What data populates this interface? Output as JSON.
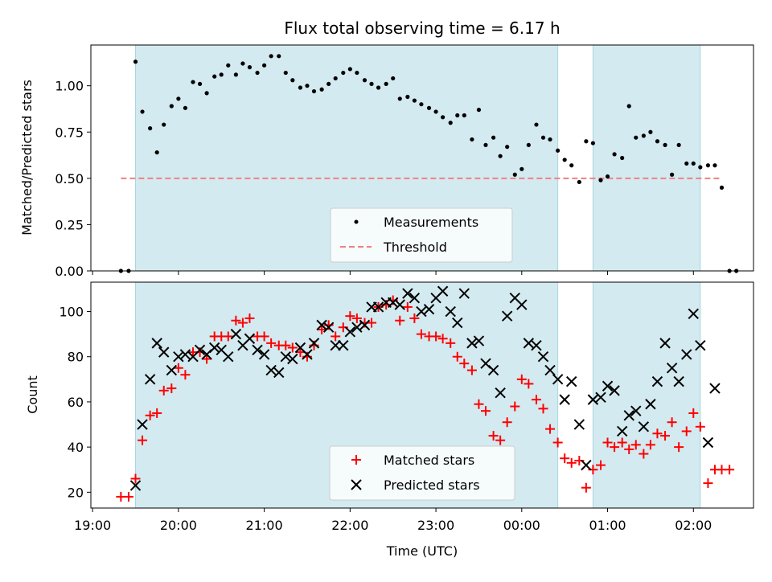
{
  "chart_data": [
    {
      "type": "scatter",
      "title": "Flux total observing time = 6.17 h",
      "xlabel": "",
      "ylabel": "Matched/Predicted stars",
      "ylim": [
        0,
        1.22
      ],
      "yticks": [
        "0.00",
        "0.25",
        "0.50",
        "0.75",
        "1.00"
      ],
      "ytick_values": [
        0,
        0.25,
        0.5,
        0.75,
        1.0
      ],
      "grid": false,
      "legend": "lower-center",
      "shaded_intervals_hours": [
        [
          19.5,
          24.42
        ],
        [
          24.83,
          26.08
        ]
      ],
      "threshold": {
        "name": "Threshold",
        "y": 0.5,
        "x_range_hours": [
          19.33,
          26.33
        ],
        "color": "#f08080"
      },
      "series": [
        {
          "name": "Measurements",
          "marker": "dot",
          "color": "#000000",
          "points": [
            [
              19.33,
              0.0
            ],
            [
              19.42,
              0.0
            ],
            [
              19.5,
              1.13
            ],
            [
              19.58,
              0.86
            ],
            [
              19.67,
              0.77
            ],
            [
              19.75,
              0.64
            ],
            [
              19.83,
              0.79
            ],
            [
              19.92,
              0.89
            ],
            [
              20.0,
              0.93
            ],
            [
              20.08,
              0.88
            ],
            [
              20.17,
              1.02
            ],
            [
              20.25,
              1.01
            ],
            [
              20.33,
              0.96
            ],
            [
              20.42,
              1.05
            ],
            [
              20.5,
              1.06
            ],
            [
              20.58,
              1.11
            ],
            [
              20.67,
              1.06
            ],
            [
              20.75,
              1.12
            ],
            [
              20.83,
              1.1
            ],
            [
              20.92,
              1.07
            ],
            [
              21.0,
              1.11
            ],
            [
              21.08,
              1.16
            ],
            [
              21.17,
              1.16
            ],
            [
              21.25,
              1.07
            ],
            [
              21.33,
              1.03
            ],
            [
              21.42,
              0.99
            ],
            [
              21.5,
              1.0
            ],
            [
              21.58,
              0.97
            ],
            [
              21.67,
              0.98
            ],
            [
              21.75,
              1.01
            ],
            [
              21.83,
              1.04
            ],
            [
              21.92,
              1.07
            ],
            [
              22.0,
              1.09
            ],
            [
              22.08,
              1.07
            ],
            [
              22.17,
              1.03
            ],
            [
              22.25,
              1.01
            ],
            [
              22.33,
              0.99
            ],
            [
              22.42,
              1.01
            ],
            [
              22.5,
              1.04
            ],
            [
              22.58,
              0.93
            ],
            [
              22.67,
              0.94
            ],
            [
              22.75,
              0.92
            ],
            [
              22.83,
              0.9
            ],
            [
              22.92,
              0.88
            ],
            [
              23.0,
              0.86
            ],
            [
              23.08,
              0.83
            ],
            [
              23.17,
              0.8
            ],
            [
              23.25,
              0.84
            ],
            [
              23.33,
              0.84
            ],
            [
              23.42,
              0.71
            ],
            [
              23.5,
              0.87
            ],
            [
              23.58,
              0.68
            ],
            [
              23.67,
              0.72
            ],
            [
              23.75,
              0.62
            ],
            [
              23.83,
              0.67
            ],
            [
              23.92,
              0.52
            ],
            [
              24.0,
              0.55
            ],
            [
              24.08,
              0.68
            ],
            [
              24.17,
              0.79
            ],
            [
              24.25,
              0.72
            ],
            [
              24.33,
              0.71
            ],
            [
              24.42,
              0.65
            ],
            [
              24.5,
              0.6
            ],
            [
              24.58,
              0.57
            ],
            [
              24.67,
              0.48
            ],
            [
              24.75,
              0.7
            ],
            [
              24.83,
              0.69
            ],
            [
              24.92,
              0.49
            ],
            [
              25.0,
              0.51
            ],
            [
              25.08,
              0.63
            ],
            [
              25.17,
              0.61
            ],
            [
              25.25,
              0.89
            ],
            [
              25.33,
              0.72
            ],
            [
              25.42,
              0.73
            ],
            [
              25.5,
              0.75
            ],
            [
              25.58,
              0.7
            ],
            [
              25.67,
              0.68
            ],
            [
              25.75,
              0.52
            ],
            [
              25.83,
              0.68
            ],
            [
              25.92,
              0.58
            ],
            [
              26.0,
              0.58
            ],
            [
              26.08,
              0.56
            ],
            [
              26.17,
              0.57
            ],
            [
              26.25,
              0.57
            ],
            [
              26.33,
              0.45
            ],
            [
              26.42,
              0.0
            ],
            [
              26.5,
              0.0
            ]
          ]
        }
      ]
    },
    {
      "type": "scatter",
      "title": "",
      "xlabel": "Time (UTC)",
      "ylabel": "Count",
      "ylim": [
        13,
        113
      ],
      "yticks": [
        "20",
        "40",
        "60",
        "80",
        "100"
      ],
      "ytick_values": [
        20,
        40,
        60,
        80,
        100
      ],
      "xticks": [
        "19:00",
        "20:00",
        "21:00",
        "22:00",
        "23:00",
        "00:00",
        "01:00",
        "02:00"
      ],
      "xtick_values_hours": [
        19,
        20,
        21,
        22,
        23,
        24,
        25,
        26
      ],
      "grid": false,
      "legend": "lower-center",
      "shaded_intervals_hours": [
        [
          19.5,
          24.42
        ],
        [
          24.83,
          26.08
        ]
      ],
      "series": [
        {
          "name": "Matched stars",
          "marker": "plus",
          "color": "#ff0000",
          "points": [
            [
              19.33,
              18
            ],
            [
              19.42,
              18
            ],
            [
              19.5,
              26
            ],
            [
              19.58,
              43
            ],
            [
              19.67,
              54
            ],
            [
              19.75,
              55
            ],
            [
              19.83,
              65
            ],
            [
              19.92,
              66
            ],
            [
              20.0,
              75
            ],
            [
              20.08,
              72
            ],
            [
              20.17,
              82
            ],
            [
              20.25,
              82
            ],
            [
              20.33,
              79
            ],
            [
              20.42,
              89
            ],
            [
              20.5,
              89
            ],
            [
              20.58,
              89
            ],
            [
              20.67,
              96
            ],
            [
              20.75,
              95
            ],
            [
              20.83,
              97
            ],
            [
              20.92,
              89
            ],
            [
              21.0,
              89
            ],
            [
              21.08,
              86
            ],
            [
              21.17,
              85
            ],
            [
              21.25,
              85
            ],
            [
              21.33,
              84
            ],
            [
              21.42,
              82
            ],
            [
              21.5,
              80
            ],
            [
              21.58,
              85
            ],
            [
              21.67,
              92
            ],
            [
              21.75,
              94
            ],
            [
              21.83,
              89
            ],
            [
              21.92,
              93
            ],
            [
              22.0,
              98
            ],
            [
              22.08,
              97
            ],
            [
              22.17,
              95
            ],
            [
              22.25,
              95
            ],
            [
              22.33,
              102
            ],
            [
              22.42,
              103
            ],
            [
              22.5,
              105
            ],
            [
              22.58,
              96
            ],
            [
              22.67,
              102
            ],
            [
              22.75,
              97
            ],
            [
              22.83,
              90
            ],
            [
              22.92,
              89
            ],
            [
              23.0,
              89
            ],
            [
              23.08,
              88
            ],
            [
              23.17,
              86
            ],
            [
              23.25,
              80
            ],
            [
              23.33,
              77
            ],
            [
              23.42,
              74
            ],
            [
              23.5,
              59
            ],
            [
              23.58,
              56
            ],
            [
              23.67,
              45
            ],
            [
              23.75,
              43
            ],
            [
              23.83,
              51
            ],
            [
              23.92,
              58
            ],
            [
              24.0,
              70
            ],
            [
              24.08,
              68
            ],
            [
              24.17,
              61
            ],
            [
              24.25,
              57
            ],
            [
              24.33,
              48
            ],
            [
              24.42,
              42
            ],
            [
              24.5,
              35
            ],
            [
              24.58,
              33
            ],
            [
              24.67,
              34
            ],
            [
              24.75,
              22
            ],
            [
              24.83,
              30
            ],
            [
              24.92,
              32
            ],
            [
              25.0,
              42
            ],
            [
              25.08,
              40
            ],
            [
              25.17,
              42
            ],
            [
              25.25,
              39
            ],
            [
              25.33,
              41
            ],
            [
              25.42,
              37
            ],
            [
              25.5,
              41
            ],
            [
              25.58,
              46
            ],
            [
              25.67,
              45
            ],
            [
              25.75,
              51
            ],
            [
              25.83,
              40
            ],
            [
              25.92,
              47
            ],
            [
              26.0,
              55
            ],
            [
              26.08,
              49
            ],
            [
              26.17,
              24
            ],
            [
              26.25,
              30
            ],
            [
              26.33,
              30
            ],
            [
              26.42,
              30
            ]
          ]
        },
        {
          "name": "Predicted stars",
          "marker": "x",
          "color": "#000000",
          "points": [
            [
              19.5,
              23
            ],
            [
              19.58,
              50
            ],
            [
              19.67,
              70
            ],
            [
              19.75,
              86
            ],
            [
              19.83,
              82
            ],
            [
              19.92,
              74
            ],
            [
              20.0,
              80
            ],
            [
              20.08,
              81
            ],
            [
              20.17,
              80
            ],
            [
              20.25,
              83
            ],
            [
              20.33,
              81
            ],
            [
              20.42,
              84
            ],
            [
              20.5,
              83
            ],
            [
              20.58,
              80
            ],
            [
              20.67,
              90
            ],
            [
              20.75,
              85
            ],
            [
              20.83,
              88
            ],
            [
              20.92,
              83
            ],
            [
              21.0,
              81
            ],
            [
              21.08,
              74
            ],
            [
              21.17,
              73
            ],
            [
              21.25,
              80
            ],
            [
              21.33,
              79
            ],
            [
              21.42,
              84
            ],
            [
              21.5,
              81
            ],
            [
              21.58,
              86
            ],
            [
              21.67,
              94
            ],
            [
              21.75,
              93
            ],
            [
              21.83,
              85
            ],
            [
              21.92,
              85
            ],
            [
              22.0,
              91
            ],
            [
              22.08,
              93
            ],
            [
              22.17,
              94
            ],
            [
              22.25,
              102
            ],
            [
              22.33,
              102
            ],
            [
              22.42,
              104
            ],
            [
              22.5,
              104
            ],
            [
              22.58,
              103
            ],
            [
              22.67,
              108
            ],
            [
              22.75,
              106
            ],
            [
              22.83,
              100
            ],
            [
              22.92,
              101
            ],
            [
              23.0,
              106
            ],
            [
              23.08,
              109
            ],
            [
              23.17,
              100
            ],
            [
              23.25,
              95
            ],
            [
              23.33,
              108
            ],
            [
              23.42,
              86
            ],
            [
              23.5,
              87
            ],
            [
              23.58,
              77
            ],
            [
              23.67,
              74
            ],
            [
              23.75,
              64
            ],
            [
              23.83,
              98
            ],
            [
              23.92,
              106
            ],
            [
              24.0,
              103
            ],
            [
              24.08,
              86
            ],
            [
              24.17,
              85
            ],
            [
              24.25,
              80
            ],
            [
              24.33,
              74
            ],
            [
              24.42,
              70
            ],
            [
              24.5,
              61
            ],
            [
              24.58,
              69
            ],
            [
              24.67,
              50
            ],
            [
              24.75,
              32
            ],
            [
              24.83,
              61
            ],
            [
              24.92,
              62
            ],
            [
              25.0,
              67
            ],
            [
              25.08,
              65
            ],
            [
              25.17,
              47
            ],
            [
              25.25,
              54
            ],
            [
              25.33,
              56
            ],
            [
              25.42,
              49
            ],
            [
              25.5,
              59
            ],
            [
              25.58,
              69
            ],
            [
              25.67,
              86
            ],
            [
              25.75,
              75
            ],
            [
              25.83,
              69
            ],
            [
              25.92,
              81
            ],
            [
              26.0,
              99
            ],
            [
              26.08,
              85
            ],
            [
              26.17,
              42
            ],
            [
              26.25,
              66
            ]
          ]
        }
      ]
    }
  ],
  "colors": {
    "shade": "#d3eaf0",
    "shade_edge": "#a7d7e0",
    "threshold": "#f08080",
    "matched": "#ff0000",
    "predicted": "#000000",
    "dots": "#000000"
  }
}
